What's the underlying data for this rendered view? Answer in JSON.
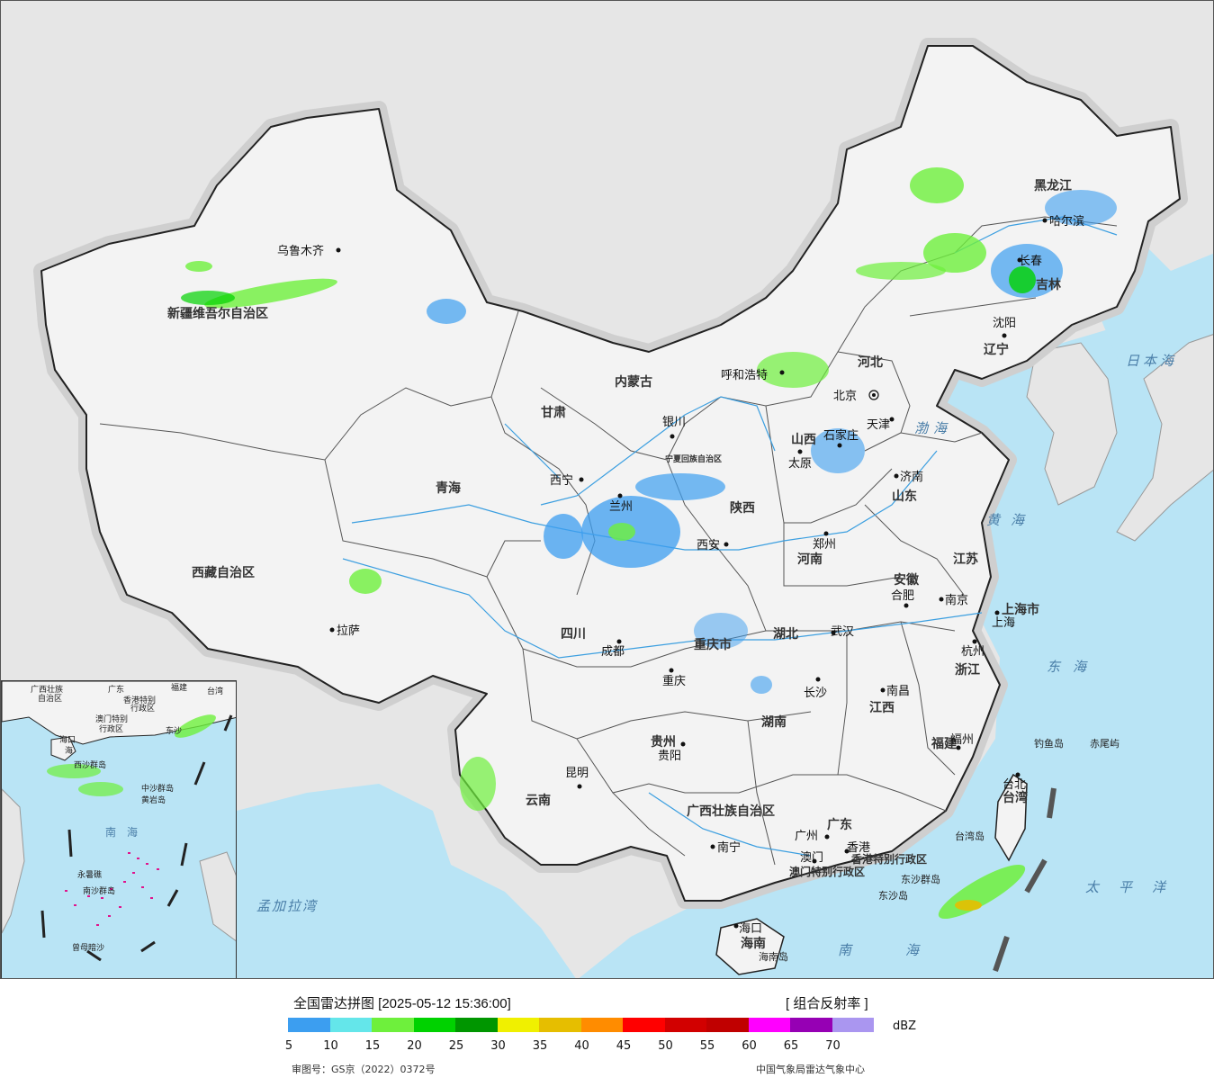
{
  "map": {
    "provinces": [
      {
        "label": "新疆维吾尔自治区"
      },
      {
        "label": "西藏自治区"
      },
      {
        "label": "青海"
      },
      {
        "label": "甘肃"
      },
      {
        "label": "内蒙古"
      },
      {
        "label": "宁夏回族自治区"
      },
      {
        "label": "陕西"
      },
      {
        "label": "山西"
      },
      {
        "label": "河北"
      },
      {
        "label": "黑龙江"
      },
      {
        "label": "吉林"
      },
      {
        "label": "辽宁"
      },
      {
        "label": "山东"
      },
      {
        "label": "河南"
      },
      {
        "label": "江苏"
      },
      {
        "label": "安徽"
      },
      {
        "label": "湖北"
      },
      {
        "label": "四川"
      },
      {
        "label": "重庆市"
      },
      {
        "label": "浙江"
      },
      {
        "label": "江西"
      },
      {
        "label": "湖南"
      },
      {
        "label": "贵州"
      },
      {
        "label": "云南"
      },
      {
        "label": "福建"
      },
      {
        "label": "台湾"
      },
      {
        "label": "广西壮族自治区"
      },
      {
        "label": "广东"
      },
      {
        "label": "海南"
      },
      {
        "label": "上海市"
      },
      {
        "label": "香港特别行政区"
      },
      {
        "label": "澳门特别行政区"
      }
    ],
    "cities": [
      {
        "label": "乌鲁木齐"
      },
      {
        "label": "拉萨"
      },
      {
        "label": "西宁"
      },
      {
        "label": "兰州"
      },
      {
        "label": "银川"
      },
      {
        "label": "呼和浩特"
      },
      {
        "label": "北京"
      },
      {
        "label": "天津"
      },
      {
        "label": "石家庄"
      },
      {
        "label": "太原"
      },
      {
        "label": "济南"
      },
      {
        "label": "西安"
      },
      {
        "label": "郑州"
      },
      {
        "label": "哈尔滨"
      },
      {
        "label": "长春"
      },
      {
        "label": "沈阳"
      },
      {
        "label": "合肥"
      },
      {
        "label": "南京"
      },
      {
        "label": "上海"
      },
      {
        "label": "杭州"
      },
      {
        "label": "武汉"
      },
      {
        "label": "成都"
      },
      {
        "label": "重庆"
      },
      {
        "label": "长沙"
      },
      {
        "label": "南昌"
      },
      {
        "label": "福州"
      },
      {
        "label": "贵阳"
      },
      {
        "label": "昆明"
      },
      {
        "label": "南宁"
      },
      {
        "label": "广州"
      },
      {
        "label": "澳门"
      },
      {
        "label": "香港"
      },
      {
        "label": "台北"
      },
      {
        "label": "海口"
      }
    ],
    "seas": [
      {
        "label": "日本海"
      },
      {
        "label": "渤海"
      },
      {
        "label": "黄海"
      },
      {
        "label": "东海"
      },
      {
        "label": "太平洋"
      },
      {
        "label": "南海"
      },
      {
        "label": "孟加拉湾"
      }
    ],
    "islands": [
      {
        "label": "钓鱼岛"
      },
      {
        "label": "赤尾屿"
      },
      {
        "label": "台湾岛"
      },
      {
        "label": "东沙群岛"
      },
      {
        "label": "东沙岛"
      },
      {
        "label": "海南岛"
      }
    ],
    "inset": {
      "labels": [
        {
          "label": "广西壮族"
        },
        {
          "label": "自治区"
        },
        {
          "label": "广东"
        },
        {
          "label": "福建"
        },
        {
          "label": "台湾"
        },
        {
          "label": "香港特别"
        },
        {
          "label": "行政区"
        },
        {
          "label": "澳门特别"
        },
        {
          "label": "行政区"
        },
        {
          "label": "东沙"
        },
        {
          "label": "海口"
        },
        {
          "label": "海"
        },
        {
          "label": "西沙群岛"
        },
        {
          "label": "中沙群岛"
        },
        {
          "label": "黄岩岛"
        },
        {
          "label": "南海"
        },
        {
          "label": "永暑礁"
        },
        {
          "label": "南沙群岛"
        },
        {
          "label": "曾母暗沙"
        }
      ]
    },
    "colors": {
      "land": "#f3f3f3",
      "sea": "#b9e4f5",
      "foreign": "#e6e6e6",
      "border": "#222222",
      "river": "#3c9fe0"
    }
  },
  "legend": {
    "title": "全国雷达拼图 [2025-05-12 15:36:00]",
    "product": "[ 组合反射率 ]",
    "unit": "dBZ",
    "ticks": [
      "5",
      "10",
      "15",
      "20",
      "25",
      "30",
      "35",
      "40",
      "45",
      "50",
      "55",
      "60",
      "65",
      "70"
    ],
    "colors": [
      "#3c9ef0",
      "#64e6ea",
      "#6ef03c",
      "#00d200",
      "#009600",
      "#f0f000",
      "#e6be00",
      "#ff8c00",
      "#ff0000",
      "#d20000",
      "#c00000",
      "#ff00ff",
      "#9600b4",
      "#aa96f0"
    ],
    "approval": "审图号：GS京（2022）0372号",
    "source": "中国气象局雷达气象中心"
  }
}
